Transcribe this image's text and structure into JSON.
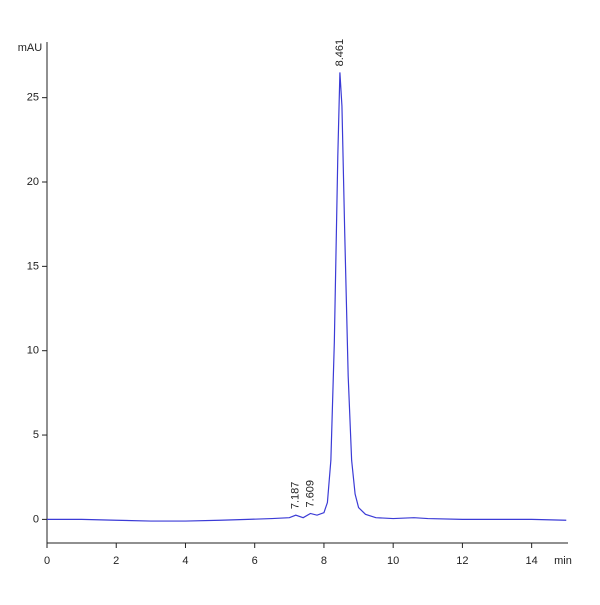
{
  "chart_data": {
    "type": "line",
    "y_label": "mAU",
    "x_label": "min",
    "xlim": [
      0,
      15.05
    ],
    "ylim": [
      -1.4,
      28.3
    ],
    "xticks": [
      0,
      2,
      4,
      6,
      8,
      10,
      12,
      14
    ],
    "yticks": [
      0,
      5,
      10,
      15,
      20,
      25
    ],
    "series": [
      {
        "color": "#3b3bd6",
        "x": [
          0,
          1,
          2,
          3,
          4,
          5,
          5.8,
          6.5,
          7.0,
          7.187,
          7.4,
          7.609,
          7.8,
          8.0,
          8.1,
          8.2,
          8.3,
          8.4,
          8.461,
          8.52,
          8.6,
          8.7,
          8.8,
          8.9,
          9.0,
          9.2,
          9.5,
          10,
          10.6,
          11,
          12,
          13,
          14,
          15
        ],
        "values": [
          0,
          0,
          -0.05,
          -0.1,
          -0.1,
          -0.05,
          0,
          0.05,
          0.1,
          0.25,
          0.1,
          0.35,
          0.25,
          0.4,
          1.0,
          3.5,
          10.5,
          21.5,
          26.5,
          24.5,
          17,
          8.5,
          3.5,
          1.5,
          0.7,
          0.3,
          0.1,
          0.05,
          0.1,
          0.05,
          0,
          0,
          0,
          -0.05
        ]
      }
    ],
    "annotations": [
      {
        "text": "7.187",
        "x": 7.187,
        "y": 0.25
      },
      {
        "text": "7.609",
        "x": 7.609,
        "y": 0.35
      },
      {
        "text": "8.461",
        "x": 8.461,
        "y": 26.5
      }
    ]
  }
}
